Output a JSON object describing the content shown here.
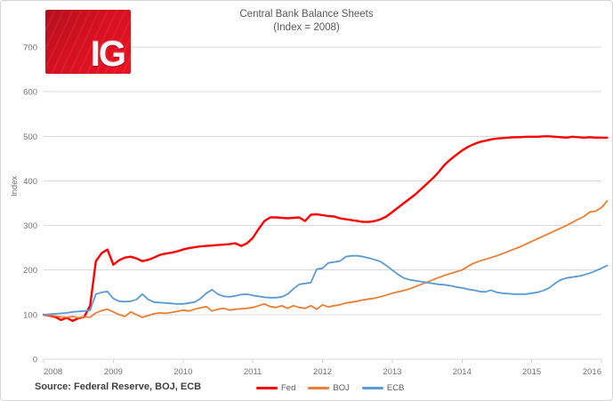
{
  "brand": {
    "logo_text": "IG"
  },
  "title": {
    "line1": "Central Bank Balance Sheets",
    "line2": "(Index = 2008)"
  },
  "source_note": "Source: Federal Reserve, BOJ, ECB",
  "chart_data": {
    "type": "line",
    "title": "Central Bank Balance Sheets (Index = 2008)",
    "xlabel": "",
    "ylabel": "Index",
    "ylim": [
      0,
      700
    ],
    "yticks": [
      0,
      100,
      200,
      300,
      400,
      500,
      600,
      700
    ],
    "x_labels": [
      "2008",
      "2009",
      "2010",
      "2011",
      "2012",
      "2013",
      "2014",
      "2015",
      "2016"
    ],
    "x_frequency": "monthly",
    "grid": true,
    "legend_position": "bottom",
    "series": [
      {
        "name": "Fed",
        "color": "#ff0000",
        "width": 2.4,
        "values": [
          100,
          98,
          95,
          88,
          93,
          86,
          92,
          95,
          120,
          220,
          238,
          246,
          212,
          222,
          228,
          230,
          226,
          220,
          223,
          228,
          234,
          237,
          239,
          242,
          246,
          249,
          251,
          253,
          254,
          255,
          256,
          257,
          258,
          260,
          254,
          260,
          272,
          292,
          310,
          318,
          318,
          317,
          316,
          317,
          318,
          310,
          324,
          325,
          323,
          321,
          320,
          316,
          314,
          312,
          310,
          308,
          308,
          310,
          314,
          320,
          330,
          340,
          350,
          360,
          370,
          382,
          394,
          406,
          420,
          436,
          448,
          458,
          468,
          476,
          482,
          487,
          490,
          493,
          495,
          496,
          497,
          498,
          498,
          499,
          499,
          499,
          500,
          500,
          499,
          498,
          497,
          499,
          498,
          497,
          498,
          497,
          497,
          497
        ]
      },
      {
        "name": "BOJ",
        "color": "#ed7d31",
        "width": 1.8,
        "values": [
          100,
          99,
          97,
          95,
          94,
          96,
          93,
          95,
          94,
          104,
          109,
          112,
          106,
          100,
          96,
          106,
          100,
          94,
          98,
          102,
          104,
          103,
          105,
          107,
          110,
          108,
          112,
          115,
          118,
          108,
          112,
          114,
          110,
          112,
          113,
          114,
          116,
          120,
          124,
          118,
          116,
          120,
          114,
          120,
          116,
          114,
          120,
          112,
          122,
          117,
          120,
          122,
          126,
          128,
          130,
          133,
          135,
          137,
          140,
          144,
          148,
          151,
          154,
          158,
          163,
          168,
          173,
          178,
          183,
          188,
          192,
          196,
          200,
          208,
          215,
          220,
          224,
          228,
          232,
          237,
          242,
          247,
          252,
          258,
          264,
          270,
          276,
          282,
          288,
          294,
          300,
          307,
          314,
          320,
          330,
          332,
          340,
          355
        ]
      },
      {
        "name": "ECB",
        "color": "#5b9bd5",
        "width": 1.8,
        "values": [
          100,
          101,
          102,
          103,
          104,
          106,
          107,
          108,
          110,
          146,
          150,
          152,
          136,
          130,
          129,
          130,
          134,
          146,
          134,
          128,
          127,
          126,
          125,
          124,
          124,
          126,
          128,
          136,
          148,
          156,
          146,
          141,
          140,
          142,
          145,
          146,
          143,
          141,
          139,
          138,
          138,
          140,
          146,
          158,
          168,
          170,
          172,
          202,
          204,
          216,
          218,
          220,
          230,
          232,
          232,
          230,
          227,
          223,
          219,
          210,
          200,
          190,
          182,
          178,
          176,
          174,
          172,
          170,
          168,
          167,
          165,
          162,
          160,
          157,
          155,
          152,
          151,
          155,
          150,
          148,
          147,
          146,
          146,
          146,
          148,
          150,
          154,
          160,
          170,
          178,
          182,
          184,
          186,
          189,
          193,
          198,
          204,
          210
        ]
      }
    ],
    "colors": {
      "grid": "#d9d9d9",
      "axis": "#d0d0d0",
      "tick_text": "#737373"
    }
  }
}
